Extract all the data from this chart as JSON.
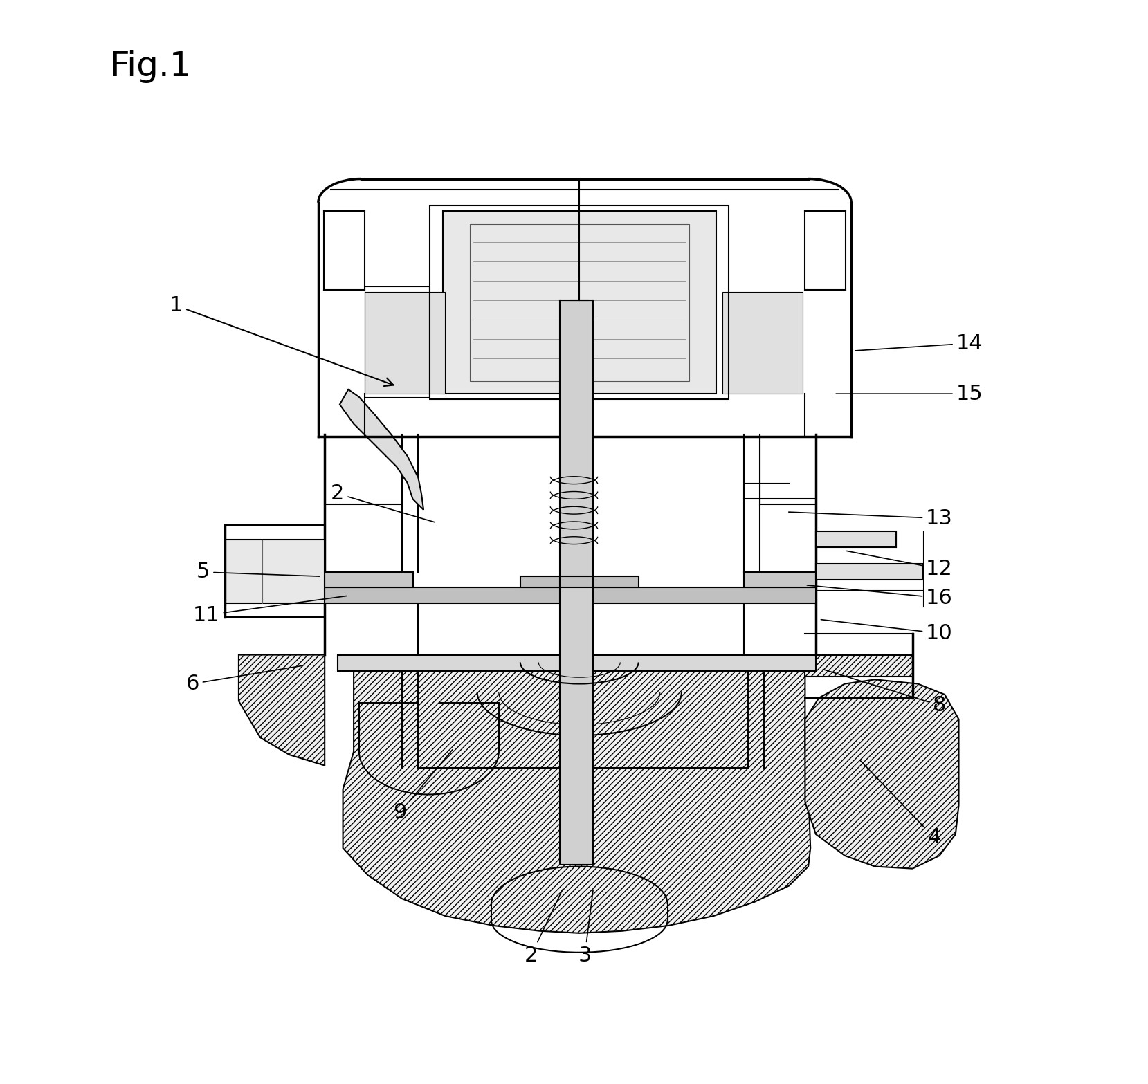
{
  "title": "Fig.1",
  "title_fontsize": 36,
  "background_color": "#ffffff",
  "line_color": "#000000",
  "fig_width": 16.59,
  "fig_height": 15.67,
  "label_fontsize": 22,
  "label_positions": {
    "1": [
      0.13,
      0.72,
      0.335,
      0.645
    ],
    "2a": [
      0.28,
      0.545,
      0.372,
      0.518
    ],
    "2b": [
      0.46,
      0.115,
      0.49,
      0.178
    ],
    "3": [
      0.51,
      0.115,
      0.518,
      0.178
    ],
    "4": [
      0.835,
      0.225,
      0.765,
      0.298
    ],
    "5": [
      0.155,
      0.472,
      0.265,
      0.468
    ],
    "6": [
      0.145,
      0.368,
      0.248,
      0.385
    ],
    "8": [
      0.84,
      0.348,
      0.73,
      0.382
    ],
    "9": [
      0.338,
      0.248,
      0.388,
      0.308
    ],
    "10": [
      0.84,
      0.415,
      0.728,
      0.428
    ],
    "11": [
      0.158,
      0.432,
      0.29,
      0.45
    ],
    "12": [
      0.84,
      0.475,
      0.752,
      0.492
    ],
    "13": [
      0.84,
      0.522,
      0.698,
      0.528
    ],
    "14": [
      0.868,
      0.685,
      0.76,
      0.678
    ],
    "15": [
      0.868,
      0.638,
      0.742,
      0.638
    ],
    "16": [
      0.84,
      0.448,
      0.715,
      0.46
    ]
  }
}
